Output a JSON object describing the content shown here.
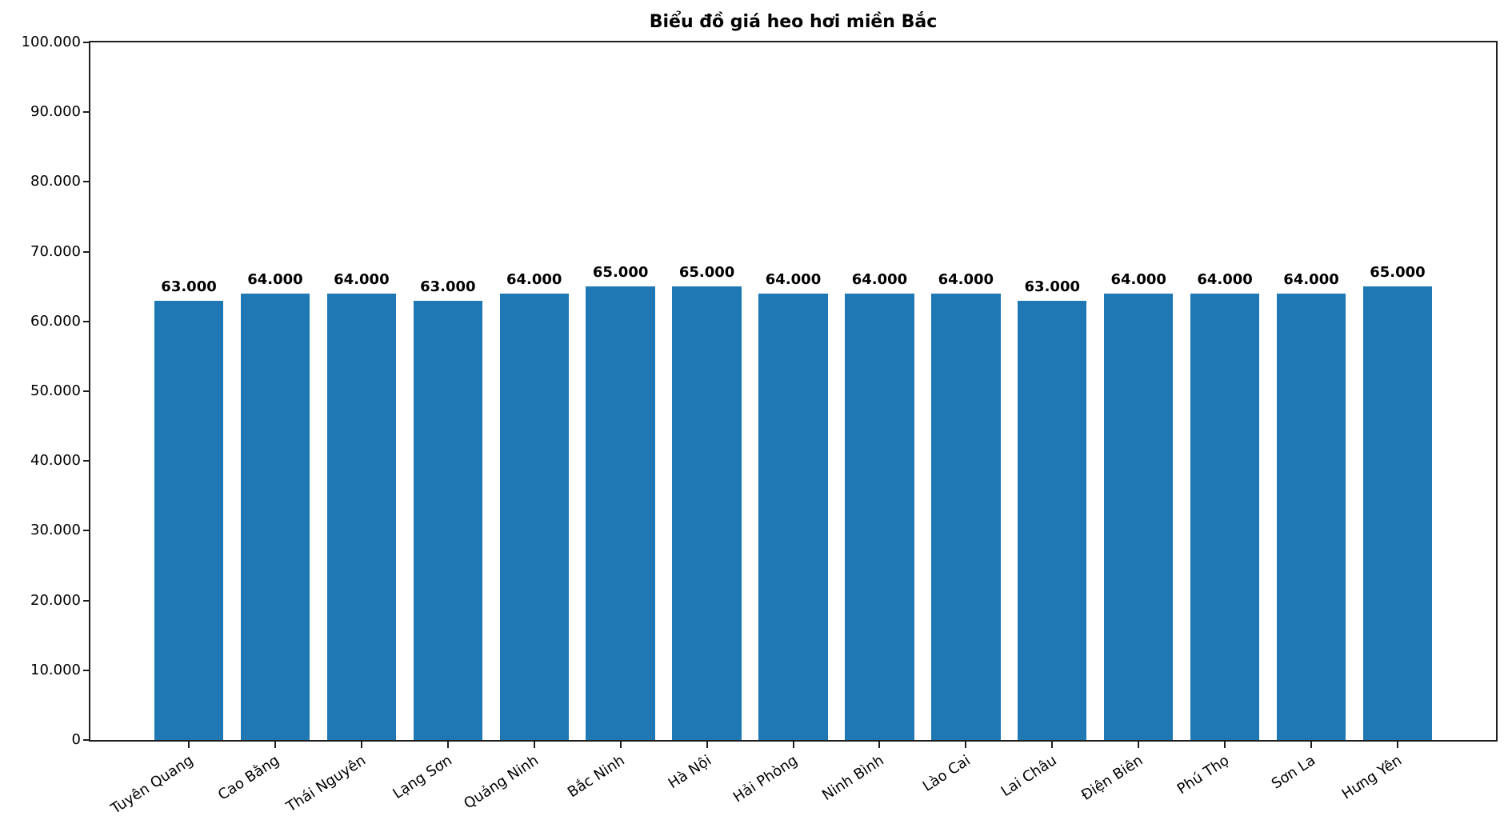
{
  "chart_data": {
    "type": "bar",
    "title": "Biểu đồ giá heo hơi miền Bắc",
    "categories": [
      "Tuyên Quang",
      "Cao Bằng",
      "Thái Nguyên",
      "Lạng Sơn",
      "Quảng Ninh",
      "Bắc Ninh",
      "Hà Nội",
      "Hải Phòng",
      "Ninh Bình",
      "Lào Cai",
      "Lai Châu",
      "Điện Biên",
      "Phú Thọ",
      "Sơn La",
      "Hưng Yên"
    ],
    "values": [
      63000,
      64000,
      64000,
      63000,
      64000,
      65000,
      65000,
      64000,
      64000,
      64000,
      63000,
      64000,
      64000,
      64000,
      65000
    ],
    "value_labels": [
      "63.000",
      "64.000",
      "64.000",
      "63.000",
      "64.000",
      "65.000",
      "65.000",
      "64.000",
      "64.000",
      "64.000",
      "63.000",
      "64.000",
      "64.000",
      "64.000",
      "65.000"
    ],
    "xlabel": "",
    "ylabel": "",
    "ylim": [
      0,
      100000
    ],
    "ytick_step": 10000,
    "ytick_labels": [
      "0",
      "10.000",
      "20.000",
      "30.000",
      "40.000",
      "50.000",
      "60.000",
      "70.000",
      "80.000",
      "90.000",
      "100.000"
    ],
    "grid": false,
    "legend": null,
    "colors": {
      "bar": "#1f77b4",
      "axis": "#1f1f1f",
      "text": "#000000",
      "background": "#ffffff"
    }
  }
}
